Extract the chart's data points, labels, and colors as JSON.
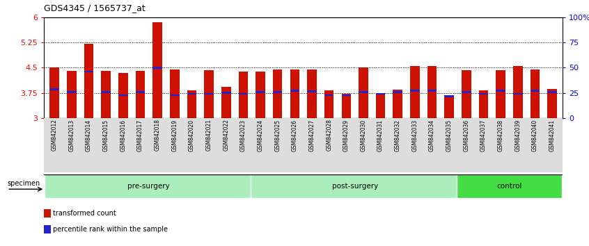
{
  "title": "GDS4345 / 1565737_at",
  "samples": [
    "GSM842012",
    "GSM842013",
    "GSM842014",
    "GSM842015",
    "GSM842016",
    "GSM842017",
    "GSM842018",
    "GSM842019",
    "GSM842020",
    "GSM842021",
    "GSM842022",
    "GSM842023",
    "GSM842024",
    "GSM842025",
    "GSM842026",
    "GSM842027",
    "GSM842028",
    "GSM842029",
    "GSM842030",
    "GSM842031",
    "GSM842032",
    "GSM842033",
    "GSM842034",
    "GSM842035",
    "GSM842036",
    "GSM842037",
    "GSM842038",
    "GSM842039",
    "GSM842040",
    "GSM842041"
  ],
  "bar_values": [
    4.5,
    4.4,
    5.2,
    4.4,
    4.35,
    4.4,
    5.85,
    4.45,
    3.82,
    4.43,
    3.93,
    4.38,
    4.38,
    4.45,
    4.45,
    4.45,
    3.82,
    3.73,
    4.5,
    3.75,
    3.85,
    4.55,
    4.55,
    3.68,
    4.42,
    3.82,
    4.42,
    4.55,
    4.45,
    3.87
  ],
  "blue_values": [
    3.85,
    3.77,
    4.38,
    3.77,
    3.68,
    3.77,
    4.5,
    3.68,
    3.72,
    3.72,
    3.75,
    3.72,
    3.77,
    3.77,
    3.82,
    3.8,
    3.68,
    3.68,
    3.77,
    3.72,
    3.77,
    3.82,
    3.82,
    3.65,
    3.77,
    3.72,
    3.82,
    3.72,
    3.82,
    3.77
  ],
  "group_boundaries": [
    0,
    12,
    24,
    30
  ],
  "group_labels": [
    "pre-surgery",
    "post-surgery",
    "control"
  ],
  "group_colors": [
    "#AAEEBB",
    "#AAEEBB",
    "#44DD44"
  ],
  "ymin": 3.0,
  "ymax": 6.0,
  "yticks_left": [
    3.0,
    3.75,
    4.5,
    5.25,
    6.0
  ],
  "yticks_left_labels": [
    "3",
    "3.75",
    "4.5",
    "5.25",
    "6"
  ],
  "yticks_right_vals": [
    3.0,
    3.75,
    4.5,
    5.25,
    6.0
  ],
  "yticks_right_labels": [
    "0",
    "25",
    "50",
    "75",
    "100%"
  ],
  "bar_color": "#CC1100",
  "blue_color": "#2222CC",
  "bar_width": 0.55,
  "background_color": "#ffffff",
  "gridlines": [
    3.75,
    4.5,
    5.25
  ],
  "legend_items": [
    {
      "label": "transformed count",
      "color": "#CC1100"
    },
    {
      "label": "percentile rank within the sample",
      "color": "#2222CC"
    }
  ]
}
